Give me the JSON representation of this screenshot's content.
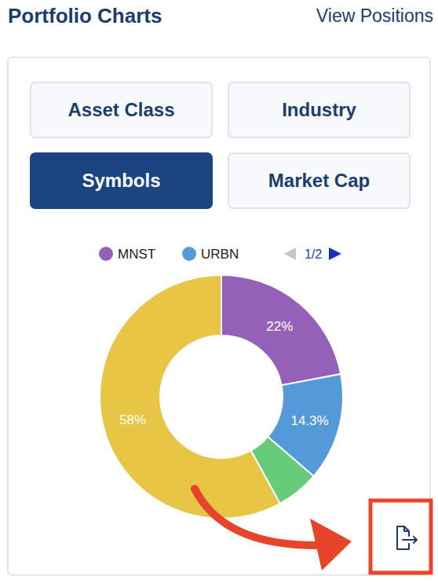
{
  "header": {
    "title": "Portfolio Charts",
    "link": "View Positions"
  },
  "tabs": [
    {
      "label": "Asset Class",
      "selected": false
    },
    {
      "label": "Industry",
      "selected": false
    },
    {
      "label": "Symbols",
      "selected": true
    },
    {
      "label": "Market Cap",
      "selected": false
    }
  ],
  "legend_pager": "1/2",
  "chart_data": {
    "type": "donut",
    "categories": [
      "MNST",
      "URBN",
      null,
      null
    ],
    "values": [
      22,
      14.3,
      5.7,
      58
    ],
    "value_labels": [
      "22%",
      "14.3%",
      null,
      "58%"
    ],
    "colors": [
      "#9561b8",
      "#5499d8",
      "#66cc7a",
      "#e8c545"
    ],
    "data_labels": true,
    "legend": "top"
  }
}
